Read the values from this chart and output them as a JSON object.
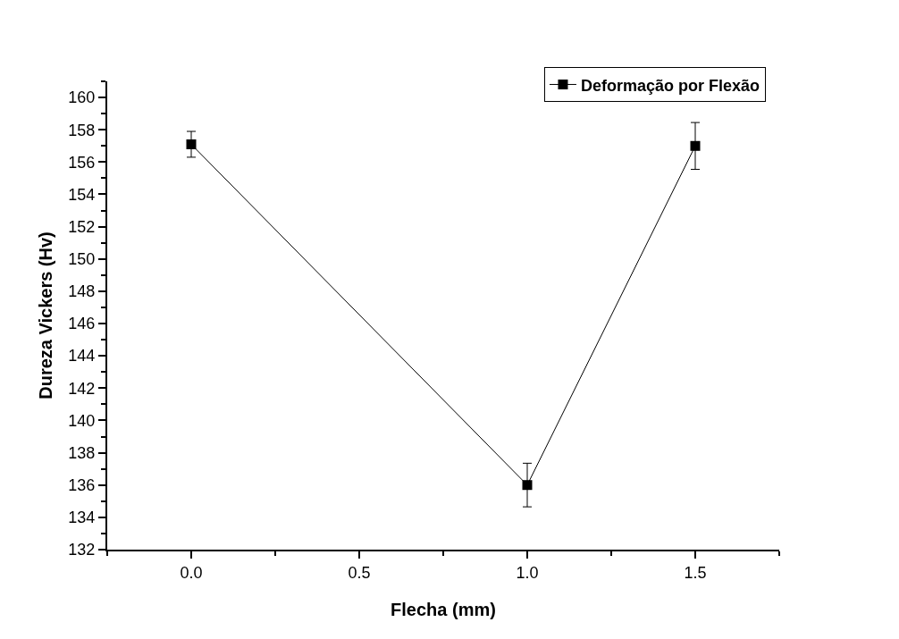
{
  "chart_data": {
    "type": "line",
    "xlabel": "Flecha (mm)",
    "ylabel": "Dureza Vickers (Hv)",
    "x": [
      0.0,
      1.0,
      1.5
    ],
    "series": [
      {
        "name": "Deformação por Flexão",
        "color": "#000000",
        "values": [
          157.1,
          136.0,
          157.0
        ],
        "errors": [
          0.8,
          1.35,
          1.45
        ]
      }
    ],
    "xlim": [
      -0.25,
      1.75
    ],
    "xticks": [
      {
        "value": 0.0,
        "label": "0.0"
      },
      {
        "value": 0.5,
        "label": "0.5"
      },
      {
        "value": 1.0,
        "label": "1.0"
      },
      {
        "value": 1.5,
        "label": "1.5"
      }
    ],
    "ylim": [
      132,
      161
    ],
    "yticks": [
      132,
      134,
      136,
      138,
      140,
      142,
      144,
      146,
      148,
      150,
      152,
      154,
      156,
      158,
      160
    ],
    "legend": "top right",
    "marker": "square",
    "line_style": "solid"
  }
}
